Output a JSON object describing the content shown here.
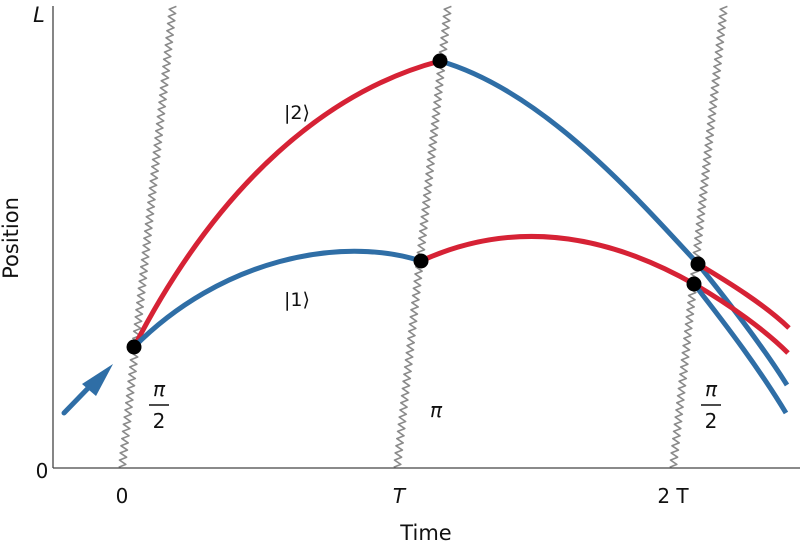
{
  "axes": {
    "x_label": "Time",
    "y_label": "Position",
    "x_ticks": [
      "0",
      "T",
      "2 T"
    ],
    "y_ticks": [
      "0",
      "L"
    ]
  },
  "pulses": [
    {
      "num": "π",
      "den": "2"
    },
    {
      "label": "π"
    },
    {
      "num": "π",
      "den": "2"
    }
  ],
  "states": {
    "upper": "|2⟩",
    "lower": "|1⟩"
  },
  "colors": {
    "state1": "#2f6ea6",
    "state2": "#d62235",
    "laser": "#8a8a8a",
    "axes": "#444444",
    "node": "#000000"
  }
}
